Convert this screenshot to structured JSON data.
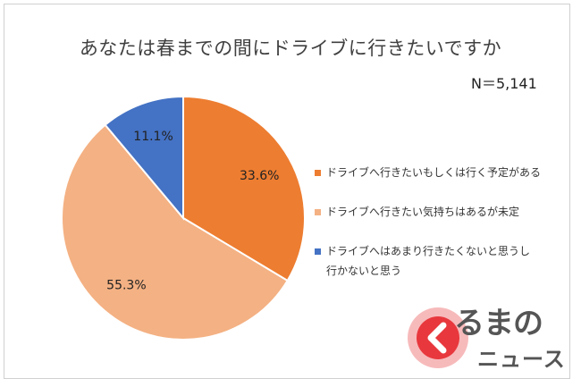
{
  "chart_data": {
    "type": "pie",
    "title": "あなたは春までの間にドライブに行きたいですか",
    "sample_size": "N＝5,141",
    "start_angle_deg": 0,
    "direction": "clockwise",
    "slices": [
      {
        "label": "ドライブへ行きたいもしくは行く予定がある",
        "value": 33.6,
        "display": "33.6%",
        "color": "#ED7D31"
      },
      {
        "label": "ドライブへ行きたい気持ちはあるが未定",
        "value": 55.3,
        "display": "55.3%",
        "color": "#F4B183"
      },
      {
        "label": "ドライブへはあまり行きたくないと思うし行かないと思う",
        "value": 11.1,
        "display": "11.1%",
        "color": "#4472C4"
      }
    ],
    "legend": {
      "placement": "right",
      "items": [
        [
          "ドライブへ行きたいもしくは行く予定がある"
        ],
        [
          "ドライブへ行きたい気持ちはあるが未定"
        ],
        [
          "ドライブへはあまり行きたくないと思うし",
          "行かないと思う"
        ]
      ]
    }
  },
  "logo": {
    "line1": "るまの",
    "line2": "ニュース",
    "mark_color": "#E8383D",
    "text_color": "#555555"
  }
}
